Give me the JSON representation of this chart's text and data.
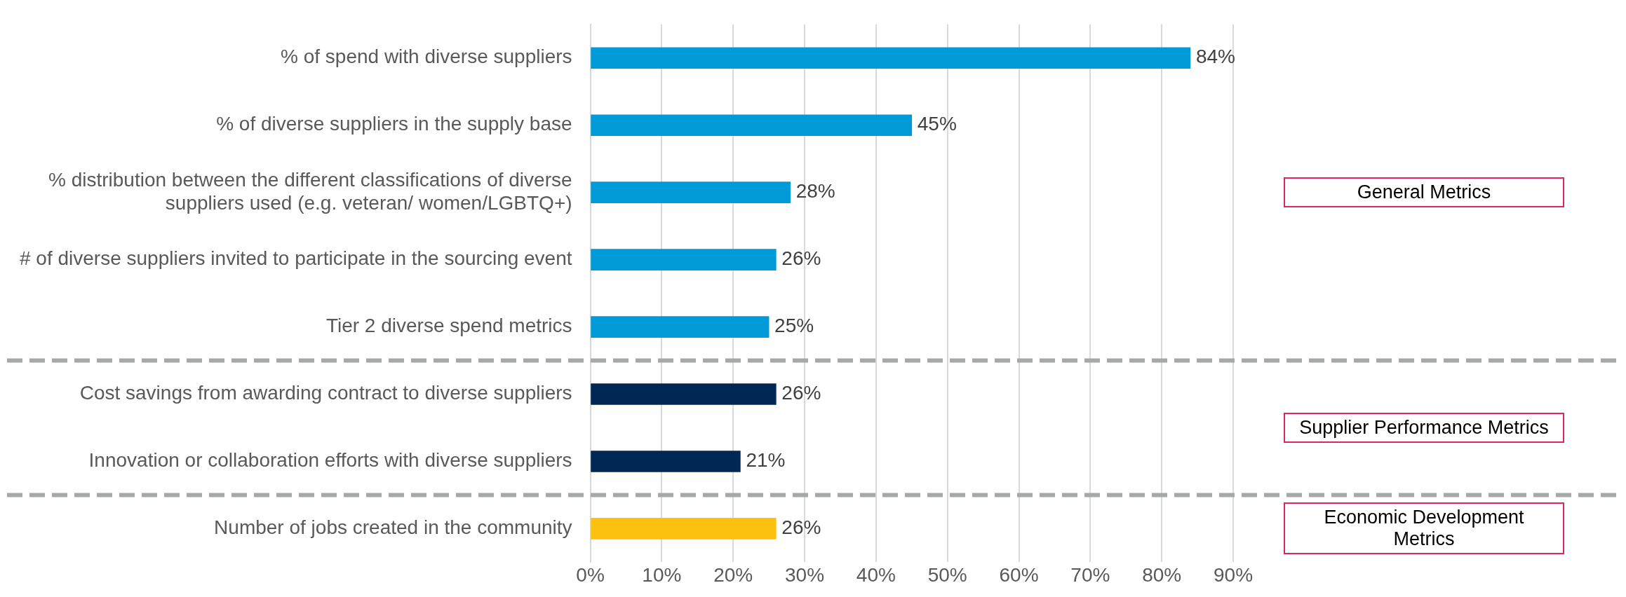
{
  "chart_data": {
    "type": "bar",
    "orientation": "horizontal",
    "categories": [
      "% of spend with diverse suppliers",
      "% of diverse suppliers in the supply base",
      "% distribution between the different classifications of diverse suppliers used (e.g. veteran/ women/LGBTQ+)",
      "# of diverse suppliers invited to participate in the sourcing event",
      "Tier 2 diverse spend metrics",
      "Cost savings from awarding contract to diverse suppliers",
      "Innovation or collaboration efforts with diverse suppliers",
      "Number of jobs created in the community"
    ],
    "values": [
      84,
      45,
      28,
      26,
      25,
      26,
      21,
      26
    ],
    "colors": [
      "#009ad8",
      "#009ad8",
      "#009ad8",
      "#009ad8",
      "#009ad8",
      "#002855",
      "#002855",
      "#fbc10e"
    ],
    "value_labels": [
      "84%",
      "45%",
      "28%",
      "26%",
      "25%",
      "26%",
      "21%",
      "26%"
    ],
    "xlim": [
      0,
      90
    ],
    "xticks": [
      {
        "value": 0,
        "label": "0%"
      },
      {
        "value": 10,
        "label": "10%"
      },
      {
        "value": 20,
        "label": "20%"
      },
      {
        "value": 30,
        "label": "30%"
      },
      {
        "value": 40,
        "label": "40%"
      },
      {
        "value": 50,
        "label": "50%"
      },
      {
        "value": 60,
        "label": "60%"
      },
      {
        "value": 70,
        "label": "70%"
      },
      {
        "value": 80,
        "label": "80%"
      },
      {
        "value": 90,
        "label": "90%"
      }
    ],
    "grid": "x",
    "legend": false,
    "annotations": [
      "General Metrics",
      "Supplier Performance Metrics",
      "Economic Development Metrics"
    ]
  }
}
